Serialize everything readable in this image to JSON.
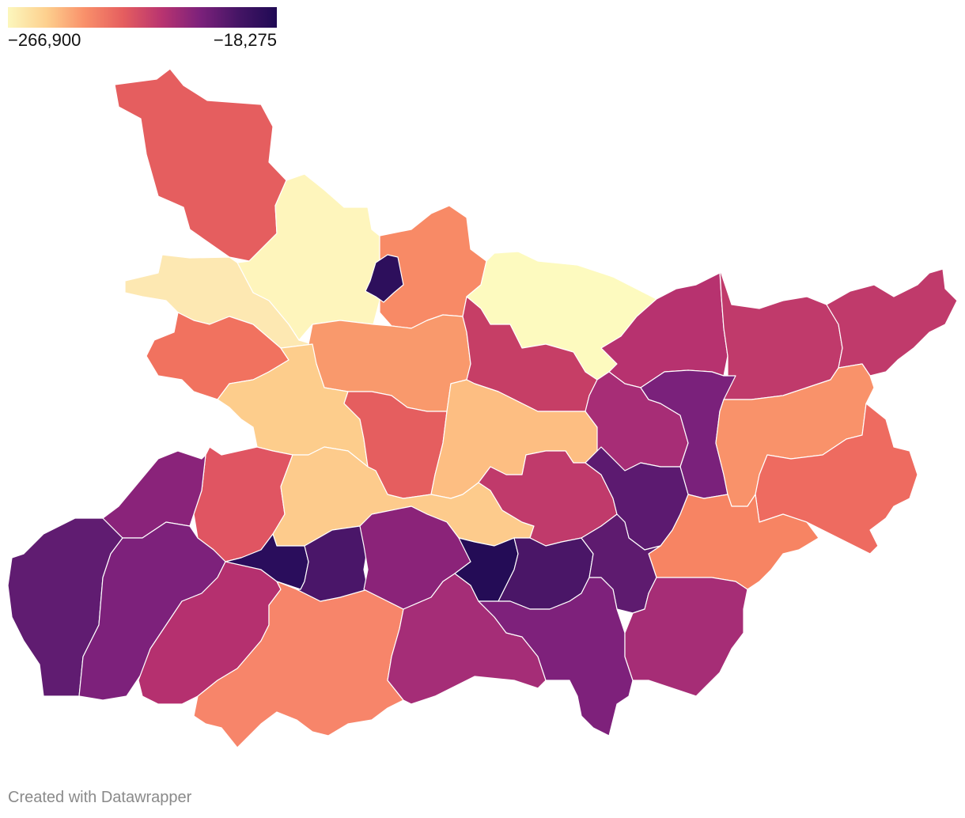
{
  "legend": {
    "min_label": "−266,900",
    "max_label": "−18,275",
    "gradient": [
      "#fcf7bd",
      "#fdd08e",
      "#f9906a",
      "#e55e5f",
      "#b93470",
      "#7c217b",
      "#451565",
      "#1f0a54"
    ]
  },
  "credit": "Created with Datawrapper",
  "map_data": {
    "type": "choropleth",
    "min": -266900,
    "max": -18275,
    "regions": [
      {
        "id": "northwest-1",
        "color": "#e55e5f"
      },
      {
        "id": "north-yellow",
        "color": "#fef5bc"
      },
      {
        "id": "west-pale",
        "color": "#fde8b2"
      },
      {
        "id": "west-orange",
        "color": "#f1725f"
      },
      {
        "id": "north-central-orange",
        "color": "#f88a66"
      },
      {
        "id": "small-dark",
        "color": "#2d0f5c"
      },
      {
        "id": "north-pale-east",
        "color": "#fdfabf"
      },
      {
        "id": "central-orange-1",
        "color": "#f9996c"
      },
      {
        "id": "central-pink-1",
        "color": "#c63e66"
      },
      {
        "id": "central-pale-1",
        "color": "#fdcd8c"
      },
      {
        "id": "central-red-1",
        "color": "#e55e5f"
      },
      {
        "id": "central-pale-2",
        "color": "#fdbe82"
      },
      {
        "id": "west-south-red",
        "color": "#e05562"
      },
      {
        "id": "central-pale-3",
        "color": "#fdcb8c"
      },
      {
        "id": "northeast-1",
        "color": "#b7326f"
      },
      {
        "id": "northeast-2",
        "color": "#c03a6b"
      },
      {
        "id": "northeast-3",
        "color": "#c03a6b"
      },
      {
        "id": "northeast-4",
        "color": "#a72d76"
      },
      {
        "id": "northeast-5",
        "color": "#7a217b"
      },
      {
        "id": "east-orange-1",
        "color": "#f9926a"
      },
      {
        "id": "east-red-1",
        "color": "#ee6b60"
      },
      {
        "id": "east-orange-2",
        "color": "#f78463"
      },
      {
        "id": "center-pink-2",
        "color": "#c03a6b"
      },
      {
        "id": "center-purple-1",
        "color": "#5c1a70"
      },
      {
        "id": "southwest-1",
        "color": "#601c71"
      },
      {
        "id": "southwest-2",
        "color": "#8a237a"
      },
      {
        "id": "southwest-3",
        "color": "#7d217b"
      },
      {
        "id": "south-pink-1",
        "color": "#b5306f"
      },
      {
        "id": "south-orange-1",
        "color": "#f7856a"
      },
      {
        "id": "south-dark-1",
        "color": "#2a0d5c"
      },
      {
        "id": "south-dark-2",
        "color": "#4a1669"
      },
      {
        "id": "south-purple-2",
        "color": "#8b2379"
      },
      {
        "id": "south-pink-2",
        "color": "#a52d77"
      },
      {
        "id": "south-dark-3",
        "color": "#240c56"
      },
      {
        "id": "south-dark-4",
        "color": "#4a1667"
      },
      {
        "id": "south-purple-3",
        "color": "#5e1b6f"
      },
      {
        "id": "south-purple-4",
        "color": "#7e217b"
      },
      {
        "id": "southeast-pink",
        "color": "#a62d76"
      }
    ]
  }
}
